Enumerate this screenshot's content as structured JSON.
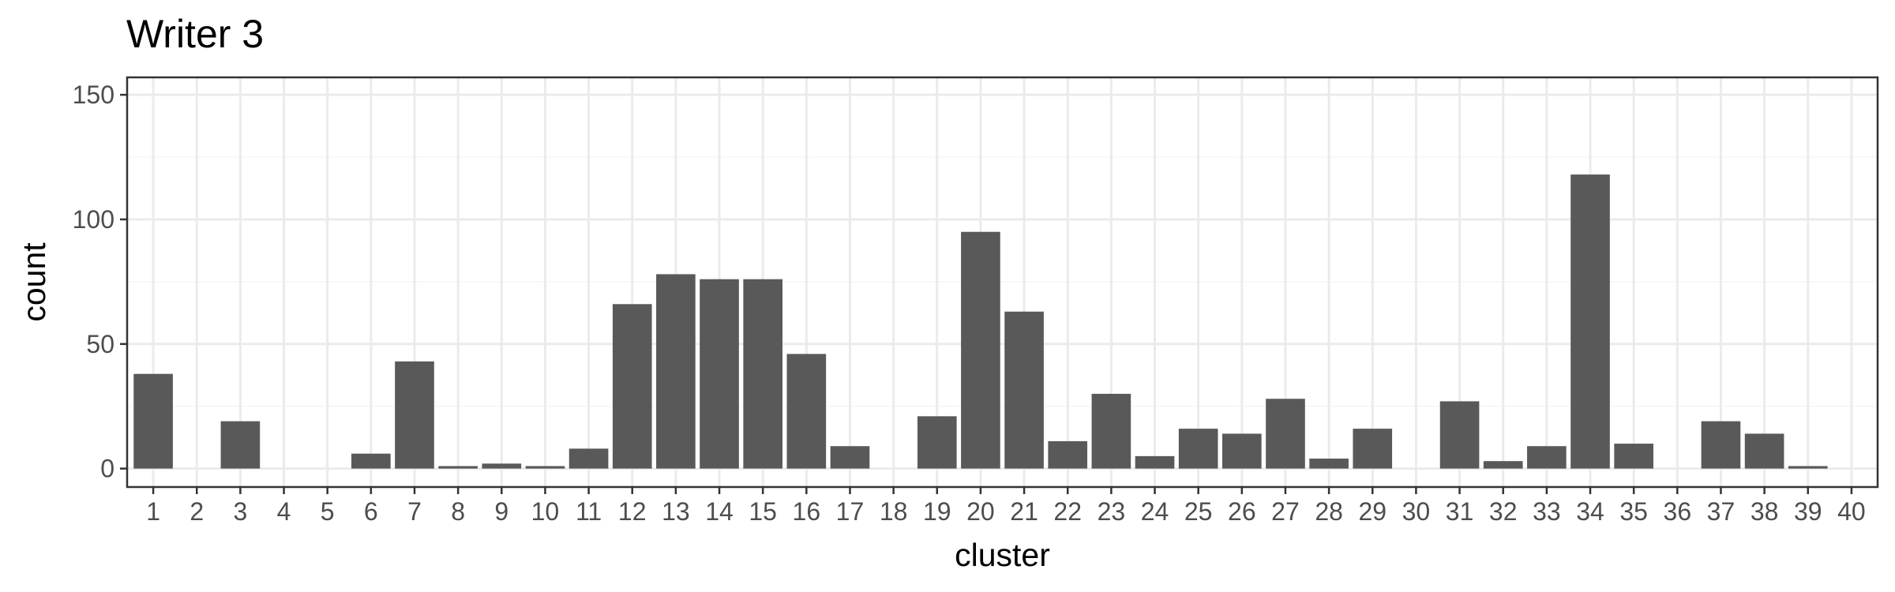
{
  "chart_data": {
    "type": "bar",
    "title": "Writer 3",
    "xlabel": "cluster",
    "ylabel": "count",
    "categories": [
      "1",
      "2",
      "3",
      "4",
      "5",
      "6",
      "7",
      "8",
      "9",
      "10",
      "11",
      "12",
      "13",
      "14",
      "15",
      "16",
      "17",
      "18",
      "19",
      "20",
      "21",
      "22",
      "23",
      "24",
      "25",
      "26",
      "27",
      "28",
      "29",
      "30",
      "31",
      "32",
      "33",
      "34",
      "35",
      "36",
      "37",
      "38",
      "39",
      "40"
    ],
    "values": [
      38,
      0,
      19,
      0,
      0,
      6,
      43,
      1,
      2,
      1,
      8,
      66,
      78,
      76,
      76,
      46,
      9,
      0,
      21,
      95,
      63,
      11,
      30,
      5,
      16,
      14,
      28,
      4,
      16,
      0,
      27,
      3,
      9,
      118,
      10,
      0,
      19,
      14,
      1,
      0
    ],
    "ylim": [
      -7.4,
      157
    ],
    "yticks": [
      0,
      50,
      100,
      150
    ],
    "grid": true,
    "legend": "none",
    "colors": {
      "bar": "#595959",
      "panel_border": "#333333",
      "grid_major": "#ebebeb",
      "grid_minor": "#f5f5f5",
      "tick_text": "#4d4d4d",
      "tick_mark": "#333333"
    }
  }
}
